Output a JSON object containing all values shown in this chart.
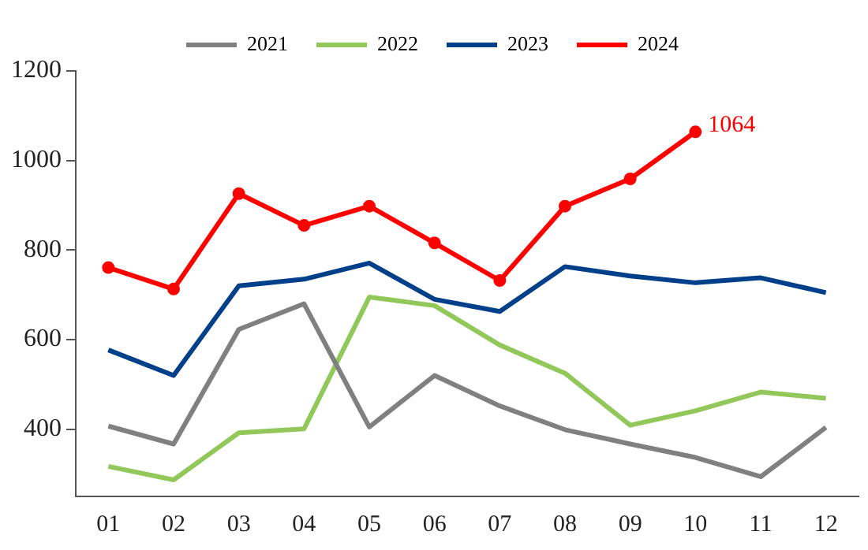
{
  "chart_data": {
    "type": "line",
    "categories": [
      "01",
      "02",
      "03",
      "04",
      "05",
      "06",
      "07",
      "08",
      "09",
      "10",
      "11",
      "12"
    ],
    "series": [
      {
        "name": "2021",
        "color": "#808080",
        "values": [
          407,
          367,
          623,
          680,
          405,
          520,
          452,
          399,
          367,
          337,
          294,
          404
        ]
      },
      {
        "name": "2022",
        "color": "#92c85a",
        "values": [
          317,
          287,
          392,
          401,
          695,
          676,
          588,
          525,
          409,
          441,
          483,
          469
        ]
      },
      {
        "name": "2023",
        "color": "#003f8a",
        "values": [
          577,
          520,
          720,
          735,
          771,
          690,
          663,
          763,
          742,
          727,
          738,
          705
        ]
      },
      {
        "name": "2024",
        "color": "#ff0000",
        "marker": "circle",
        "values": [
          761,
          713,
          926,
          855,
          898,
          816,
          732,
          898,
          959,
          1064,
          null,
          null
        ]
      }
    ],
    "ylim": [
      250,
      1200
    ],
    "yticks": [
      400,
      600,
      800,
      1000,
      1200
    ],
    "grid": false,
    "legend": "top",
    "marker": "none",
    "line_style": "solid",
    "annotations": [
      {
        "text": "1064",
        "x": "10",
        "y": 1064
      }
    ]
  }
}
